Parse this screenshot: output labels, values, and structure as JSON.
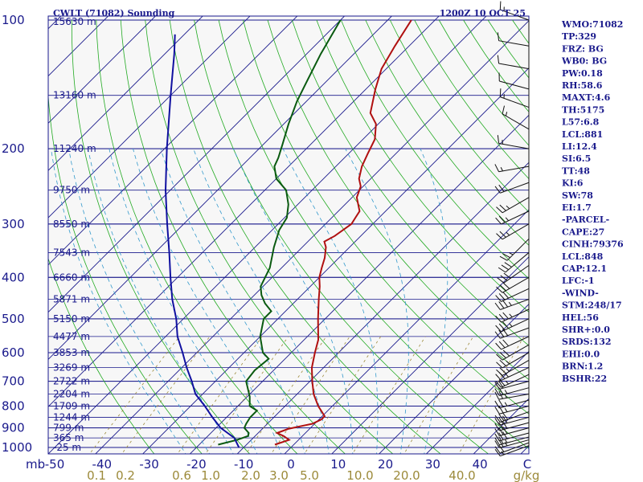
{
  "header": {
    "station_title": "CWLT (71082) Sounding",
    "valid_time": "1200Z 10 OCT 25"
  },
  "colors": {
    "background": "#f7f7f7",
    "isobar": "#1a1a8c",
    "isotherm": "#1a1a8c",
    "dry_adiabat": "#22aa22",
    "moist_adiabat": "#3399cc",
    "mixing_ratio": "#9c8a3a",
    "temperature": "#b01010",
    "dewpoint": "#0a5a10",
    "parcel": "#1010a0",
    "wind": "#111111",
    "axis": "#1a1a8c"
  },
  "chart_data": {
    "type": "line",
    "title": "CWLT (71082) Sounding",
    "y_axis": "pressure (mb), log scale",
    "y_unit_label": "mb",
    "pressure_ticks": [
      100,
      200,
      300,
      400,
      500,
      600,
      700,
      800,
      900,
      1000
    ],
    "height_labels": [
      {
        "p": 150,
        "text": "13160 m"
      },
      {
        "p": 200,
        "text": "11240 m"
      },
      {
        "p": 250,
        "text": "9750 m"
      },
      {
        "p": 300,
        "text": "8550 m"
      },
      {
        "p": 350,
        "text": "7543 m"
      },
      {
        "p": 400,
        "text": "6660 m"
      },
      {
        "p": 450,
        "text": "5871 m"
      },
      {
        "p": 500,
        "text": "5150 m"
      },
      {
        "p": 550,
        "text": "4477 m"
      },
      {
        "p": 600,
        "text": "3853 m"
      },
      {
        "p": 650,
        "text": "3269 m"
      },
      {
        "p": 700,
        "text": "2722 m"
      },
      {
        "p": 750,
        "text": "2204 m"
      },
      {
        "p": 800,
        "text": "1709 m"
      },
      {
        "p": 850,
        "text": "1244 m"
      },
      {
        "p": 900,
        "text": "799 m"
      },
      {
        "p": 950,
        "text": "365 m"
      },
      {
        "p": 1000,
        "text": "-25 m"
      }
    ],
    "top_height_label": "15630 m",
    "temperature_ticks": [
      "-50",
      "-40",
      "-30",
      "-20",
      "-10",
      "0",
      "10",
      "20",
      "30",
      "40",
      "C"
    ],
    "mixing_ratio_ticks": [
      "0.1",
      "0.2",
      "0.6",
      "1.0",
      "2.0",
      "3.0",
      "5.0",
      "10.0",
      "20.0",
      "40.0",
      "g/kg"
    ],
    "mixing_ratio_values": [
      0.1,
      0.2,
      0.6,
      1.0,
      2.0,
      3.0,
      5.0,
      10.0,
      20.0,
      40.0
    ],
    "temperature_range_at_1000mb": [
      -50,
      50
    ],
    "series": [
      {
        "key": "temperature",
        "points": [
          [
            985,
            -4.0
          ],
          [
            960,
            -2.0
          ],
          [
            940,
            -4.0
          ],
          [
            925,
            -6.0
          ],
          [
            905,
            -4.5
          ],
          [
            880,
            -0.5
          ],
          [
            860,
            0.5
          ],
          [
            845,
            0.5
          ],
          [
            800,
            -3.0
          ],
          [
            750,
            -6.5
          ],
          [
            700,
            -9.5
          ],
          [
            650,
            -12.5
          ],
          [
            600,
            -15.0
          ],
          [
            560,
            -17.0
          ],
          [
            500,
            -21.5
          ],
          [
            450,
            -25.5
          ],
          [
            420,
            -28.0
          ],
          [
            400,
            -30.0
          ],
          [
            380,
            -31.5
          ],
          [
            360,
            -33.0
          ],
          [
            340,
            -35.0
          ],
          [
            330,
            -36.5
          ],
          [
            320,
            -35.5
          ],
          [
            300,
            -34.5
          ],
          [
            290,
            -35.0
          ],
          [
            280,
            -35.5
          ],
          [
            260,
            -39.0
          ],
          [
            245,
            -40.5
          ],
          [
            235,
            -42.5
          ],
          [
            220,
            -44.5
          ],
          [
            205,
            -46.0
          ],
          [
            190,
            -47.5
          ],
          [
            175,
            -50.5
          ],
          [
            165,
            -54.0
          ],
          [
            145,
            -58.0
          ],
          [
            130,
            -61.0
          ],
          [
            115,
            -63.0
          ],
          [
            100,
            -65.0
          ]
        ]
      },
      {
        "key": "dewpoint",
        "points": [
          [
            985,
            -16.0
          ],
          [
            960,
            -13.0
          ],
          [
            940,
            -11.5
          ],
          [
            925,
            -12.0
          ],
          [
            900,
            -14.0
          ],
          [
            880,
            -14.5
          ],
          [
            850,
            -15.0
          ],
          [
            820,
            -15.0
          ],
          [
            800,
            -17.5
          ],
          [
            760,
            -19.5
          ],
          [
            700,
            -23.5
          ],
          [
            660,
            -24.0
          ],
          [
            620,
            -23.5
          ],
          [
            600,
            -26.0
          ],
          [
            550,
            -30.0
          ],
          [
            500,
            -33.0
          ],
          [
            480,
            -33.0
          ],
          [
            460,
            -36.0
          ],
          [
            440,
            -38.5
          ],
          [
            420,
            -40.5
          ],
          [
            380,
            -42.5
          ],
          [
            340,
            -46.0
          ],
          [
            310,
            -48.5
          ],
          [
            290,
            -49.5
          ],
          [
            270,
            -52.0
          ],
          [
            250,
            -55.5
          ],
          [
            235,
            -60.0
          ],
          [
            220,
            -63.0
          ],
          [
            210,
            -64.0
          ],
          [
            195,
            -66.0
          ],
          [
            175,
            -69.0
          ],
          [
            155,
            -72.0
          ],
          [
            140,
            -74.0
          ],
          [
            120,
            -77.0
          ],
          [
            100,
            -80.0
          ]
        ]
      },
      {
        "key": "parcel",
        "points": [
          [
            1000,
            -11.0
          ],
          [
            950,
            -14.0
          ],
          [
            900,
            -19.0
          ],
          [
            850,
            -23.0
          ],
          [
            800,
            -27.0
          ],
          [
            750,
            -31.5
          ],
          [
            700,
            -35.0
          ],
          [
            650,
            -39.0
          ],
          [
            600,
            -43.0
          ],
          [
            550,
            -47.5
          ],
          [
            500,
            -51.5
          ],
          [
            450,
            -56.5
          ],
          [
            400,
            -61.5
          ],
          [
            350,
            -67.0
          ],
          [
            300,
            -73.5
          ],
          [
            250,
            -81.0
          ],
          [
            200,
            -89.5
          ],
          [
            150,
            -100.0
          ],
          [
            120,
            -108.0
          ],
          [
            108,
            -112.0
          ]
        ]
      }
    ],
    "wind_levels": [
      {
        "p": 990,
        "dir": 250,
        "spd": 15
      },
      {
        "p": 975,
        "dir": 250,
        "spd": 20
      },
      {
        "p": 960,
        "dir": 255,
        "spd": 25
      },
      {
        "p": 945,
        "dir": 255,
        "spd": 25
      },
      {
        "p": 925,
        "dir": 255,
        "spd": 30
      },
      {
        "p": 900,
        "dir": 255,
        "spd": 30
      },
      {
        "p": 875,
        "dir": 255,
        "spd": 30
      },
      {
        "p": 850,
        "dir": 255,
        "spd": 30
      },
      {
        "p": 825,
        "dir": 250,
        "spd": 30
      },
      {
        "p": 800,
        "dir": 255,
        "spd": 25
      },
      {
        "p": 775,
        "dir": 255,
        "spd": 25
      },
      {
        "p": 750,
        "dir": 260,
        "spd": 25
      },
      {
        "p": 725,
        "dir": 255,
        "spd": 25
      },
      {
        "p": 700,
        "dir": 255,
        "spd": 20
      },
      {
        "p": 675,
        "dir": 245,
        "spd": 25
      },
      {
        "p": 650,
        "dir": 245,
        "spd": 25
      },
      {
        "p": 625,
        "dir": 240,
        "spd": 25
      },
      {
        "p": 600,
        "dir": 240,
        "spd": 25
      },
      {
        "p": 575,
        "dir": 240,
        "spd": 30
      },
      {
        "p": 550,
        "dir": 245,
        "spd": 30
      },
      {
        "p": 525,
        "dir": 250,
        "spd": 30
      },
      {
        "p": 500,
        "dir": 245,
        "spd": 35
      },
      {
        "p": 475,
        "dir": 245,
        "spd": 35
      },
      {
        "p": 450,
        "dir": 250,
        "spd": 35
      },
      {
        "p": 425,
        "dir": 245,
        "spd": 30
      },
      {
        "p": 400,
        "dir": 240,
        "spd": 30
      },
      {
        "p": 375,
        "dir": 235,
        "spd": 30
      },
      {
        "p": 350,
        "dir": 230,
        "spd": 30
      },
      {
        "p": 325,
        "dir": 225,
        "spd": 25
      },
      {
        "p": 300,
        "dir": 240,
        "spd": 25
      },
      {
        "p": 280,
        "dir": 245,
        "spd": 25
      },
      {
        "p": 260,
        "dir": 240,
        "spd": 25
      },
      {
        "p": 240,
        "dir": 250,
        "spd": 20
      },
      {
        "p": 220,
        "dir": 260,
        "spd": 15
      },
      {
        "p": 200,
        "dir": 280,
        "spd": 15
      },
      {
        "p": 180,
        "dir": 300,
        "spd": 15
      },
      {
        "p": 160,
        "dir": 290,
        "spd": 15
      },
      {
        "p": 145,
        "dir": 285,
        "spd": 10
      },
      {
        "p": 130,
        "dir": 280,
        "spd": 10
      },
      {
        "p": 115,
        "dir": 280,
        "spd": 10
      },
      {
        "p": 100,
        "dir": 290,
        "spd": 15
      }
    ],
    "grid": true
  },
  "indices": [
    "WMO:71082",
    "TP:329",
    "FRZ: BG",
    "WB0: BG",
    "PW:0.18",
    "RH:58.6",
    "MAXT:4.6",
    "TH:5175",
    "L57:6.8",
    "LCL:881",
    "LI:12.4",
    "SI:6.5",
    "TT:48",
    "KI:6",
    "SW:78",
    "EI:1.7",
    "-PARCEL-",
    "CAPE:27",
    "CINH:79376",
    "LCL:848",
    "CAP:12.1",
    "LFC:-1",
    "-WIND-",
    "STM:248/17",
    "HEL:56",
    "SHR+:0.0",
    "SRDS:132",
    "EHI:0.0",
    "BRN:1.2",
    "BSHR:22"
  ]
}
